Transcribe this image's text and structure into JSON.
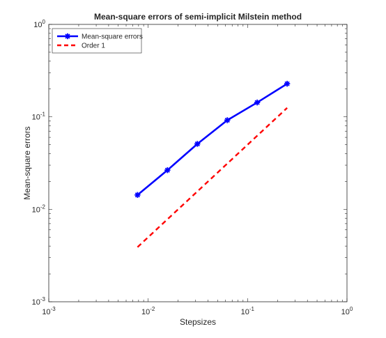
{
  "chart_data": {
    "type": "line",
    "title": "Mean-square errors of semi-implicit Milstein method",
    "xlabel": "Stepsizes",
    "ylabel": "Mean-square errors",
    "xscale": "log",
    "yscale": "log",
    "xlim": [
      0.001,
      1
    ],
    "ylim": [
      0.001,
      1
    ],
    "grid": false,
    "legend_position": "top-left",
    "x_ticks": [
      {
        "base": "10",
        "exp": "-3",
        "value": 0.001
      },
      {
        "base": "10",
        "exp": "-2",
        "value": 0.01
      },
      {
        "base": "10",
        "exp": "-1",
        "value": 0.1
      },
      {
        "base": "10",
        "exp": "0",
        "value": 1
      }
    ],
    "y_ticks": [
      {
        "base": "10",
        "exp": "-3",
        "value": 0.001
      },
      {
        "base": "10",
        "exp": "-2",
        "value": 0.01
      },
      {
        "base": "10",
        "exp": "-1",
        "value": 0.1
      },
      {
        "base": "10",
        "exp": "0",
        "value": 1
      }
    ],
    "series": [
      {
        "name": "Mean-square errors",
        "color": "#0000ff",
        "line_style": "solid",
        "marker": "asterisk",
        "x": [
          0.0078125,
          0.015625,
          0.03125,
          0.0625,
          0.125,
          0.25
        ],
        "y": [
          0.0143,
          0.0265,
          0.051,
          0.092,
          0.143,
          0.228
        ]
      },
      {
        "name": "Order 1",
        "color": "#ff0000",
        "line_style": "dashed",
        "marker": "none",
        "x": [
          0.0078125,
          0.25
        ],
        "y": [
          0.0039,
          0.125
        ]
      }
    ]
  }
}
